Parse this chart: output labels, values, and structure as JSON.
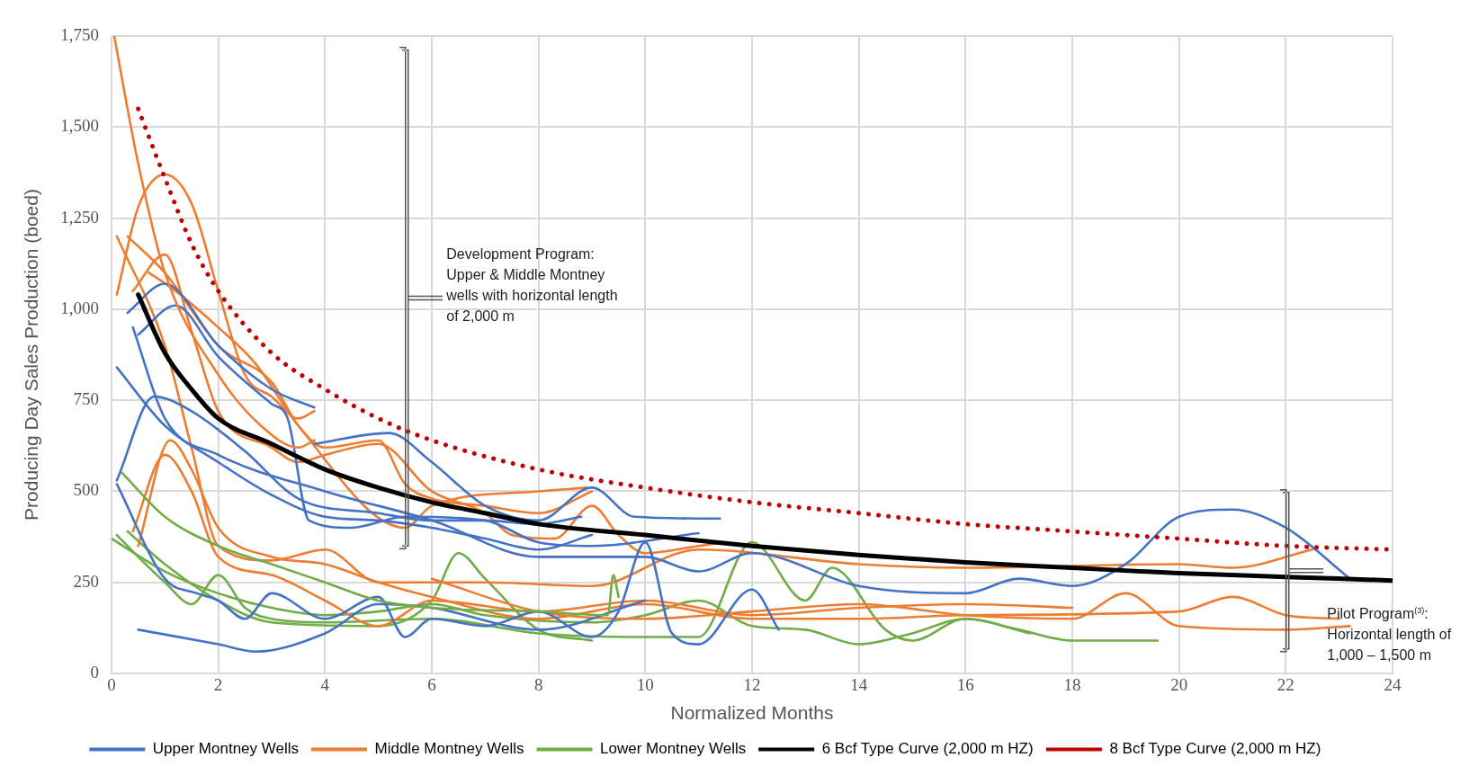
{
  "chart_data": {
    "type": "line",
    "xlabel": "Normalized Months",
    "ylabel": "Producing Day Sales Production (boed)",
    "xlim": [
      0,
      24
    ],
    "xticks": [
      0,
      2,
      4,
      6,
      8,
      10,
      12,
      14,
      16,
      18,
      20,
      22,
      24
    ],
    "ylim": [
      0,
      1750
    ],
    "yticks": [
      {
        "value": 0,
        "label": "0"
      },
      {
        "value": 250,
        "label": "250"
      },
      {
        "value": 500,
        "label": "500"
      },
      {
        "value": 750,
        "label": "750"
      },
      {
        "value": 1000,
        "label": "1,000"
      },
      {
        "value": 1250,
        "label": "1,250"
      },
      {
        "value": 1500,
        "label": "1,500"
      },
      {
        "value": 1750,
        "label": "1,750"
      }
    ],
    "grid": true,
    "legend": "bottom",
    "annotations": [
      "Development Program: Upper & Middle Montney wells with horizontal length of 2,000 m",
      "Pilot Program$^{(3)}$: Horizontal length of 1,000 – 1,500 m"
    ],
    "series": [
      {
        "name": "Upper Montney Wells",
        "color": "#4472c4",
        "x": [
          0.1,
          1,
          2,
          3,
          4,
          5,
          6,
          7,
          8,
          9
        ],
        "values": [
          840,
          680,
          580,
          490,
          430,
          420,
          400,
          370,
          340,
          380
        ]
      },
      {
        "name": "Middle Montney Wells",
        "color": "#ed7d31",
        "x": [
          0.05,
          0.5,
          1,
          2,
          2.8,
          3.5,
          3.8
        ],
        "values": [
          1750,
          1400,
          1100,
          820,
          680,
          620,
          640
        ]
      },
      {
        "name": "Lower Montney Wells",
        "color": "#70ad47",
        "x": [
          0.2,
          1,
          2,
          3,
          4,
          5,
          6,
          8,
          9.3,
          9.4,
          9.5
        ],
        "values": [
          550,
          430,
          350,
          300,
          250,
          200,
          180,
          170,
          160,
          270,
          210
        ]
      },
      {
        "name": "6 Bcf Type Curve (2,000 m HZ)",
        "color": "#000000",
        "x": [
          0.5,
          1,
          1.5,
          2,
          3,
          4,
          5,
          6,
          7,
          8,
          10,
          12,
          14,
          16,
          18,
          20,
          22,
          24
        ],
        "values": [
          1040,
          880,
          780,
          700,
          630,
          560,
          510,
          470,
          440,
          410,
          380,
          350,
          325,
          305,
          290,
          275,
          265,
          255
        ]
      },
      {
        "name": "8 Bcf Type Curve (2,000 m HZ)",
        "color": "#c00000",
        "line_style": "dotted",
        "x": [
          0.5,
          1,
          1.5,
          2,
          3,
          4,
          5,
          6,
          8,
          10,
          12,
          14,
          16,
          18,
          20,
          22,
          24
        ],
        "values": [
          1550,
          1360,
          1180,
          1050,
          880,
          780,
          700,
          640,
          560,
          510,
          470,
          440,
          410,
          390,
          370,
          350,
          340
        ]
      },
      {
        "color": "#4472c4",
        "x": [
          0.1,
          0.8,
          1.5,
          2.5,
          3.5,
          5,
          6,
          7,
          8,
          8.8
        ],
        "values": [
          530,
          760,
          720,
          610,
          480,
          440,
          420,
          420,
          410,
          430
        ]
      },
      {
        "color": "#4472c4",
        "x": [
          0.3,
          1,
          2,
          3,
          3.8
        ],
        "values": [
          990,
          1070,
          900,
          780,
          730
        ]
      },
      {
        "color": "#4472c4",
        "x": [
          0.5,
          1.2,
          2,
          3,
          3.3,
          3.7,
          4.5,
          5.5,
          7,
          8,
          9,
          11
        ],
        "values": [
          930,
          1010,
          870,
          740,
          700,
          420,
          400,
          430,
          420,
          360,
          350,
          385
        ]
      },
      {
        "color": "#4472c4",
        "x": [
          3.8,
          5.2,
          6,
          7,
          8,
          9,
          9.8,
          11.4
        ],
        "values": [
          630,
          660,
          580,
          460,
          420,
          510,
          430,
          425
        ]
      },
      {
        "color": "#4472c4",
        "x": [
          0.1,
          1,
          1.6,
          2,
          2.5,
          3,
          4,
          5,
          5.5,
          6,
          7,
          8,
          9,
          9.5,
          10,
          10.5,
          11,
          12,
          12.5
        ],
        "values": [
          520,
          260,
          220,
          200,
          150,
          220,
          150,
          210,
          100,
          150,
          130,
          170,
          100,
          170,
          360,
          110,
          80,
          230,
          120
        ]
      },
      {
        "color": "#4472c4",
        "x": [
          0.5,
          2,
          2.7,
          4,
          5,
          6,
          8,
          10
        ],
        "values": [
          120,
          80,
          60,
          110,
          190,
          180,
          120,
          200
        ]
      },
      {
        "color": "#4472c4",
        "x": [
          0.4,
          1,
          2,
          4,
          6,
          8,
          10,
          11,
          12,
          14,
          16,
          17,
          18,
          19,
          20,
          21,
          22,
          23.2
        ],
        "values": [
          950,
          700,
          600,
          500,
          420,
          320,
          320,
          280,
          330,
          240,
          220,
          260,
          240,
          300,
          430,
          450,
          400,
          260
        ]
      },
      {
        "color": "#ed7d31",
        "x": [
          0.1,
          0.5,
          1,
          1.5,
          2,
          2.5,
          3,
          3.5,
          3.8
        ],
        "values": [
          1040,
          1280,
          1370,
          1290,
          1050,
          820,
          760,
          700,
          720
        ]
      },
      {
        "color": "#ed7d31",
        "x": [
          0.3,
          1,
          2,
          3,
          3.5,
          4,
          5,
          5.5,
          6,
          7,
          8,
          9
        ],
        "values": [
          1200,
          1100,
          900,
          800,
          680,
          620,
          640,
          520,
          480,
          460,
          440,
          500
        ]
      },
      {
        "color": "#ed7d31",
        "x": [
          0.4,
          1,
          1.5,
          2,
          3,
          3.5,
          4,
          5,
          6,
          7,
          7.5,
          8.3,
          9,
          9.5,
          10,
          11,
          11.5
        ],
        "values": [
          1050,
          1150,
          940,
          720,
          620,
          580,
          600,
          630,
          500,
          440,
          380,
          370,
          460,
          380,
          330,
          350,
          360
        ]
      },
      {
        "color": "#ed7d31",
        "x": [
          0.7,
          1.2,
          2,
          2.7,
          3.5,
          5.5,
          6,
          8,
          8.9
        ],
        "values": [
          1100,
          1050,
          950,
          850,
          680,
          400,
          460,
          500,
          510
        ]
      },
      {
        "color": "#ed7d31",
        "x": [
          0.1,
          1,
          1.5,
          2,
          3,
          4,
          5,
          7,
          9,
          11,
          14,
          16,
          20,
          21,
          22.5
        ],
        "values": [
          1200,
          900,
          620,
          350,
          310,
          340,
          250,
          250,
          240,
          340,
          300,
          290,
          300,
          290,
          340
        ]
      },
      {
        "color": "#ed7d31",
        "x": [
          0.4,
          1,
          1.5,
          2,
          3,
          4,
          5,
          6,
          8,
          10,
          12,
          14,
          16,
          18
        ],
        "values": [
          390,
          600,
          500,
          320,
          270,
          200,
          130,
          200,
          170,
          200,
          160,
          180,
          190,
          180
        ]
      },
      {
        "color": "#ed7d31",
        "x": [
          0.5,
          1.1,
          1.5,
          2,
          3,
          4,
          5,
          6,
          8,
          10,
          12,
          14,
          16,
          20,
          21,
          22,
          23
        ],
        "values": [
          350,
          640,
          560,
          400,
          320,
          300,
          250,
          210,
          150,
          190,
          150,
          150,
          160,
          170,
          210,
          160,
          150
        ]
      },
      {
        "color": "#ed7d31",
        "x": [
          6,
          8,
          10,
          12,
          14,
          16,
          18,
          19,
          20,
          22,
          23.2
        ],
        "values": [
          260,
          170,
          150,
          170,
          190,
          160,
          150,
          220,
          130,
          120,
          130
        ]
      },
      {
        "color": "#70ad47",
        "x": [
          0.1,
          0.5,
          1,
          1.5,
          2,
          2.5,
          3,
          4,
          6,
          8,
          10,
          11,
          12,
          13,
          13.5,
          14.5,
          15,
          16,
          17,
          18,
          19.6
        ],
        "values": [
          380,
          320,
          250,
          190,
          270,
          180,
          150,
          140,
          150,
          110,
          100,
          100,
          360,
          200,
          290,
          120,
          90,
          150,
          120,
          90,
          90
        ]
      },
      {
        "color": "#70ad47",
        "x": [
          0,
          1,
          2,
          3,
          4,
          5,
          6,
          7,
          9,
          10,
          11,
          12,
          13,
          14,
          15,
          16,
          17.2
        ],
        "values": [
          370,
          280,
          220,
          180,
          160,
          170,
          190,
          160,
          140,
          160,
          200,
          130,
          120,
          80,
          110,
          150,
          110
        ]
      },
      {
        "color": "#70ad47",
        "x": [
          0.3,
          1,
          2,
          3,
          5,
          6,
          6.5,
          7,
          8,
          9
        ],
        "values": [
          390,
          300,
          200,
          140,
          130,
          200,
          330,
          260,
          120,
          90
        ]
      }
    ]
  }
}
